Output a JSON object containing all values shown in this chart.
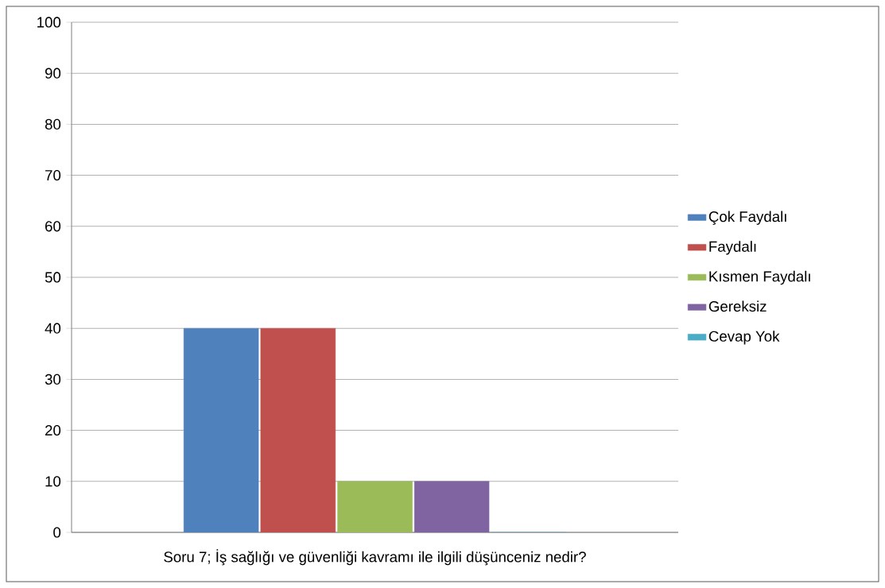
{
  "chart_data": {
    "type": "bar",
    "categories": [
      "Soru 7; İş sağlığı ve güvenliği kavramı ile ilgili düşünceniz nedir?"
    ],
    "series": [
      {
        "name": "Çok Faydalı",
        "color": "#4f81bd",
        "values": [
          40
        ]
      },
      {
        "name": "Faydalı",
        "color": "#c0504d",
        "values": [
          40
        ]
      },
      {
        "name": "Kısmen Faydalı",
        "color": "#9bbb59",
        "values": [
          10
        ]
      },
      {
        "name": "Gereksiz",
        "color": "#8064a2",
        "values": [
          10
        ]
      },
      {
        "name": "Cevap Yok",
        "color": "#4bacc6",
        "values": [
          0
        ]
      }
    ],
    "ylim": [
      0,
      100
    ],
    "yticks": [
      0,
      10,
      20,
      30,
      40,
      50,
      60,
      70,
      80,
      90,
      100
    ],
    "grid": "y",
    "legend": "right"
  }
}
